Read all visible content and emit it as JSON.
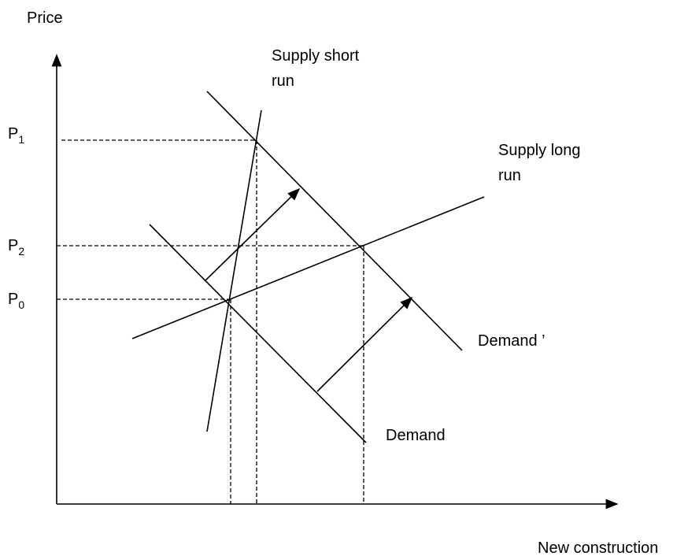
{
  "axes": {
    "y_label": "Price",
    "x_label": "New construction"
  },
  "curves": {
    "supply_short_run": [
      "Supply short",
      "run"
    ],
    "supply_long_run": [
      "Supply long",
      "run"
    ],
    "demand_shifted": "Demand ’",
    "demand": "Demand"
  },
  "price_levels": [
    {
      "base": "P",
      "sub": "1"
    },
    {
      "base": "P",
      "sub": "2"
    },
    {
      "base": "P",
      "sub": "0"
    }
  ]
}
